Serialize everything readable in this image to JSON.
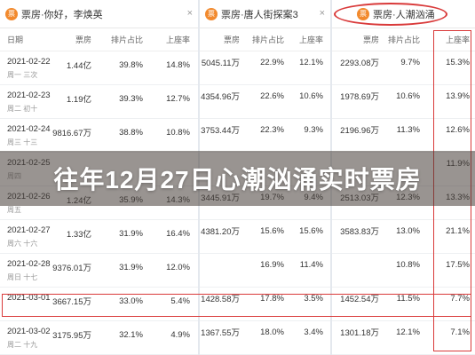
{
  "tabs": [
    {
      "logo": "票",
      "title": "票房·你好，李焕英",
      "close": "×"
    },
    {
      "logo": "票",
      "title": "票房·唐人街探案3",
      "close": "×"
    },
    {
      "logo": "票",
      "title": "票房·人潮汹涌"
    }
  ],
  "headers": {
    "p1": [
      "日期",
      "票房",
      "排片占比",
      "上座率"
    ],
    "p2": [
      "票房",
      "排片占比",
      "上座率"
    ],
    "p3": [
      "票房",
      "排片占比",
      "上座率"
    ]
  },
  "rows": [
    {
      "date": "2021-02-22",
      "weekday": "周一 三次",
      "p1": [
        "1.44亿",
        "39.8%",
        "14.8%"
      ],
      "p2": [
        "5045.11万",
        "22.9%",
        "12.1%"
      ],
      "p3": [
        "2293.08万",
        "9.7%",
        "15.3%"
      ]
    },
    {
      "date": "2021-02-23",
      "weekday": "周二 初十",
      "p1": [
        "1.19亿",
        "39.3%",
        "12.7%"
      ],
      "p2": [
        "4354.96万",
        "22.6%",
        "10.6%"
      ],
      "p3": [
        "1978.69万",
        "10.6%",
        "13.9%"
      ]
    },
    {
      "date": "2021-02-24",
      "weekday": "周三 十三",
      "p1": [
        "9816.67万",
        "38.8%",
        "10.8%"
      ],
      "p2": [
        "3753.44万",
        "22.3%",
        "9.3%"
      ],
      "p3": [
        "2196.96万",
        "11.3%",
        "12.6%"
      ]
    },
    {
      "date": "2021-02-25",
      "weekday": "周四",
      "p1": [
        "",
        "",
        ""
      ],
      "p2": [
        "",
        "",
        ""
      ],
      "p3": [
        "",
        "",
        "11.9%"
      ]
    },
    {
      "date": "2021-02-26",
      "weekday": "周五",
      "p1": [
        "1.24亿",
        "35.9%",
        "14.3%"
      ],
      "p2": [
        "3445.91万",
        "19.7%",
        "9.4%"
      ],
      "p3": [
        "2513.03万",
        "12.3%",
        "13.3%"
      ]
    },
    {
      "date": "2021-02-27",
      "weekday": "周六 十六",
      "p1": [
        "1.33亿",
        "31.9%",
        "16.4%"
      ],
      "p2": [
        "4381.20万",
        "15.6%",
        "15.6%"
      ],
      "p3": [
        "3583.83万",
        "13.0%",
        "21.1%"
      ]
    },
    {
      "date": "2021-02-28",
      "weekday": "周日 十七",
      "p1": [
        "9376.01万",
        "31.9%",
        "12.0%"
      ],
      "p2": [
        "",
        "16.9%",
        "11.4%"
      ],
      "p3": [
        "",
        "10.8%",
        "17.5%"
      ]
    },
    {
      "date": "2021-03-01",
      "weekday": "",
      "p1": [
        "3667.15万",
        "33.0%",
        "5.4%"
      ],
      "p2": [
        "1428.58万",
        "17.8%",
        "3.5%"
      ],
      "p3": [
        "1452.54万",
        "11.5%",
        "7.7%"
      ]
    },
    {
      "date": "2021-03-02",
      "weekday": "周二 十九",
      "p1": [
        "3175.95万",
        "32.1%",
        "4.9%"
      ],
      "p2": [
        "1367.55万",
        "18.0%",
        "3.4%"
      ],
      "p3": [
        "1301.18万",
        "12.1%",
        "7.1%"
      ]
    }
  ],
  "banner": "往年12月27日心潮汹涌实时票房"
}
